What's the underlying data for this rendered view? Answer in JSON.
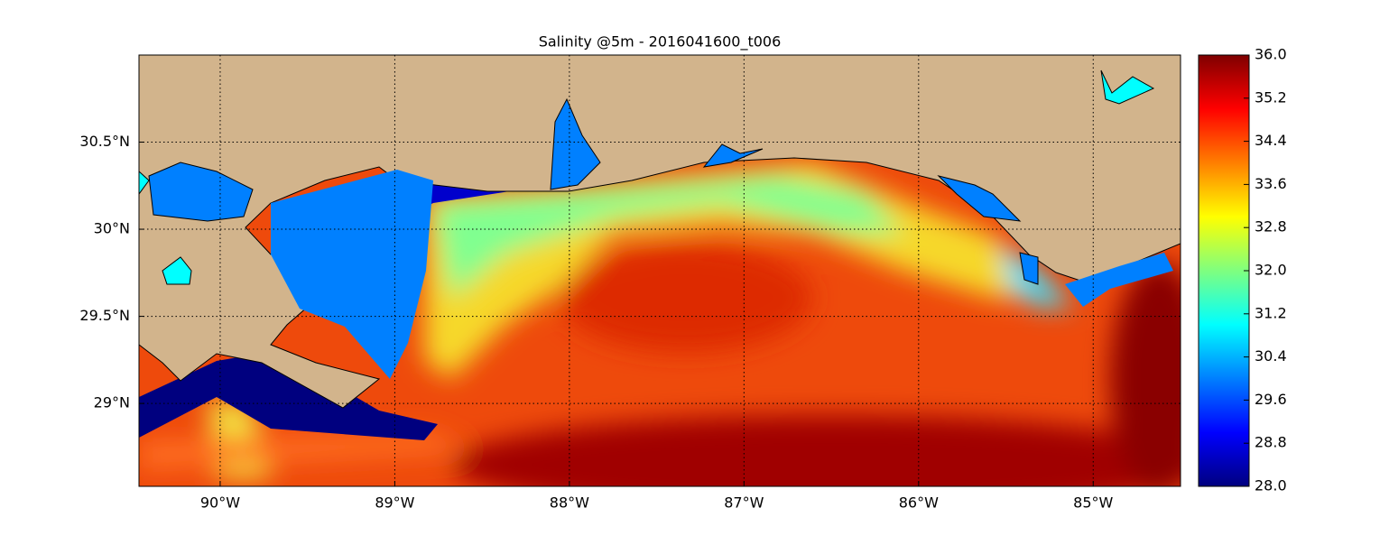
{
  "chart_data": {
    "type": "map",
    "title": "Salinity @5m - 2016041600_t006",
    "xlim": [
      -90.465,
      -84.5
    ],
    "ylim": [
      28.524,
      31.0
    ],
    "xticks": [
      {
        "value": -90,
        "label": "90°W"
      },
      {
        "value": -89,
        "label": "89°W"
      },
      {
        "value": -88,
        "label": "88°W"
      },
      {
        "value": -87,
        "label": "87°W"
      },
      {
        "value": -86,
        "label": "86°W"
      },
      {
        "value": -85,
        "label": "85°W"
      }
    ],
    "yticks": [
      {
        "value": 29,
        "label": "29°N"
      },
      {
        "value": 29.5,
        "label": "29.5°N"
      },
      {
        "value": 30,
        "label": "30°N"
      },
      {
        "value": 30.5,
        "label": "30.5°N"
      }
    ],
    "grid": true,
    "clim": [
      28,
      36
    ],
    "cticks": [
      {
        "value": 28,
        "label": "28.0"
      },
      {
        "value": 28.8,
        "label": "28.8"
      },
      {
        "value": 29.6,
        "label": "29.6"
      },
      {
        "value": 30.4,
        "label": "30.4"
      },
      {
        "value": 31.2,
        "label": "31.2"
      },
      {
        "value": 32,
        "label": "32.0"
      },
      {
        "value": 32.8,
        "label": "32.8"
      },
      {
        "value": 33.6,
        "label": "33.6"
      },
      {
        "value": 34.4,
        "label": "34.4"
      },
      {
        "value": 35.2,
        "label": "35.2"
      },
      {
        "value": 36,
        "label": "36.0"
      }
    ],
    "colormap": [
      "#00007f",
      "#0000ff",
      "#007fff",
      "#00ffff",
      "#7fff7f",
      "#ffff00",
      "#ff7f00",
      "#ff0000",
      "#7f0000"
    ]
  }
}
